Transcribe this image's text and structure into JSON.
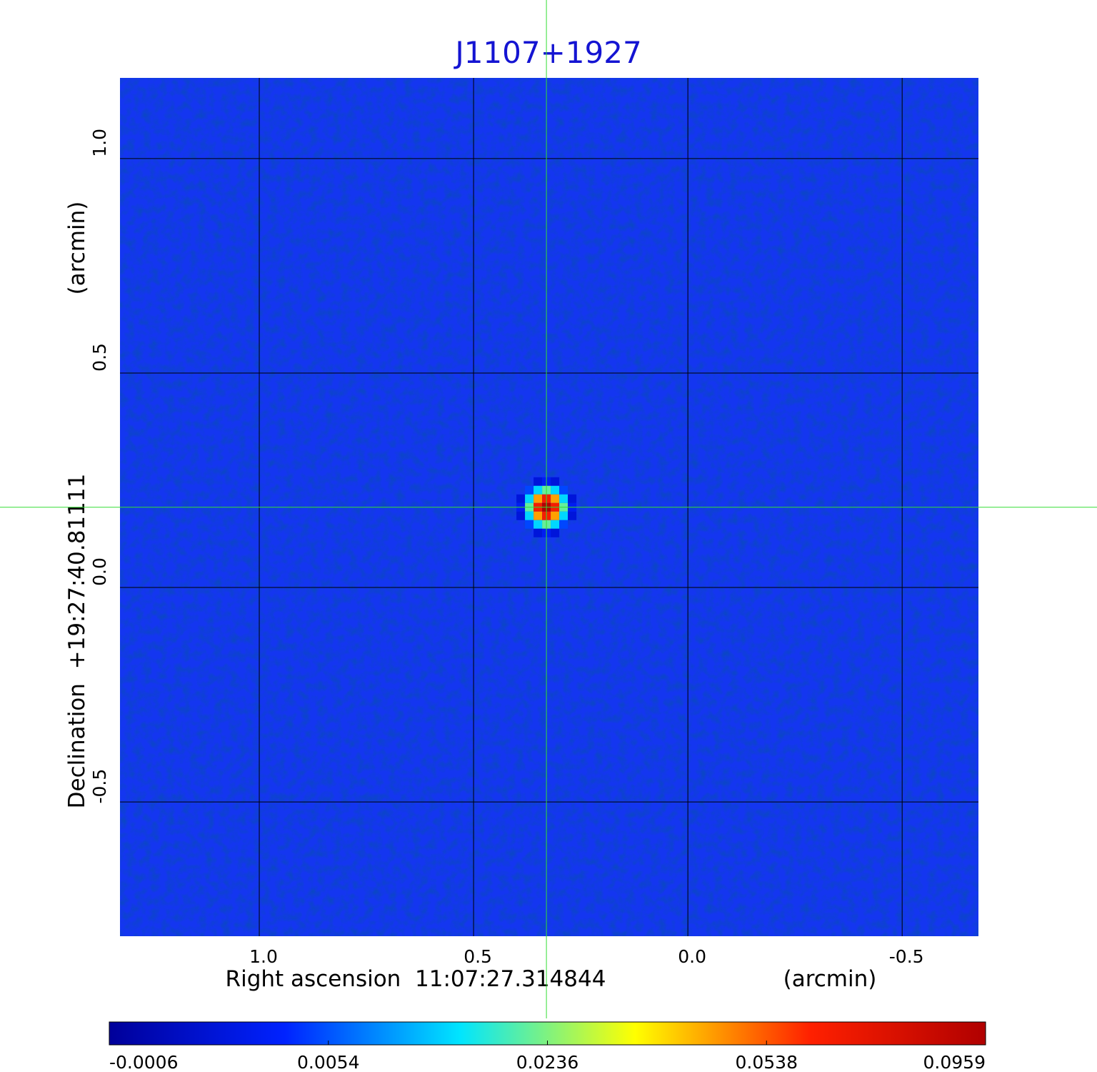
{
  "chart_data": {
    "type": "image",
    "title": "J1107+1927",
    "x_label": "Right ascension  11:07:27.314844",
    "x_unit": "(arcmin)",
    "y_label": "Declination  +19:27:40.81111",
    "y_unit": "(arcmin)",
    "xlim": [
      1.325,
      -0.678
    ],
    "ylim": [
      -0.813,
      1.188
    ],
    "xticks": [
      {
        "value": 1,
        "label": "1.0"
      },
      {
        "value": 0.5,
        "label": "0.5"
      },
      {
        "value": 0,
        "label": "0.0"
      },
      {
        "value": -0.5,
        "label": "-0.5"
      }
    ],
    "yticks": [
      {
        "value": 1,
        "label": "1.0"
      },
      {
        "value": 0.5,
        "label": "0.5"
      },
      {
        "value": 0,
        "label": "0.0"
      },
      {
        "value": -0.5,
        "label": "-0.5"
      }
    ],
    "grid": true,
    "background_color": "#1436f0",
    "crosshair_color": "#33dd33",
    "sources": [
      {
        "x": 0.33,
        "y": 0.187,
        "peak": 0.0959
      }
    ],
    "colorbar": {
      "ticks": [
        -0.0006,
        0.0054,
        0.0236,
        0.0538,
        0.0959
      ],
      "colormap": [
        "#00009a",
        "#0022ff",
        "#00e5ff",
        "#ffff00",
        "#ff2000",
        "#b00000"
      ]
    }
  }
}
